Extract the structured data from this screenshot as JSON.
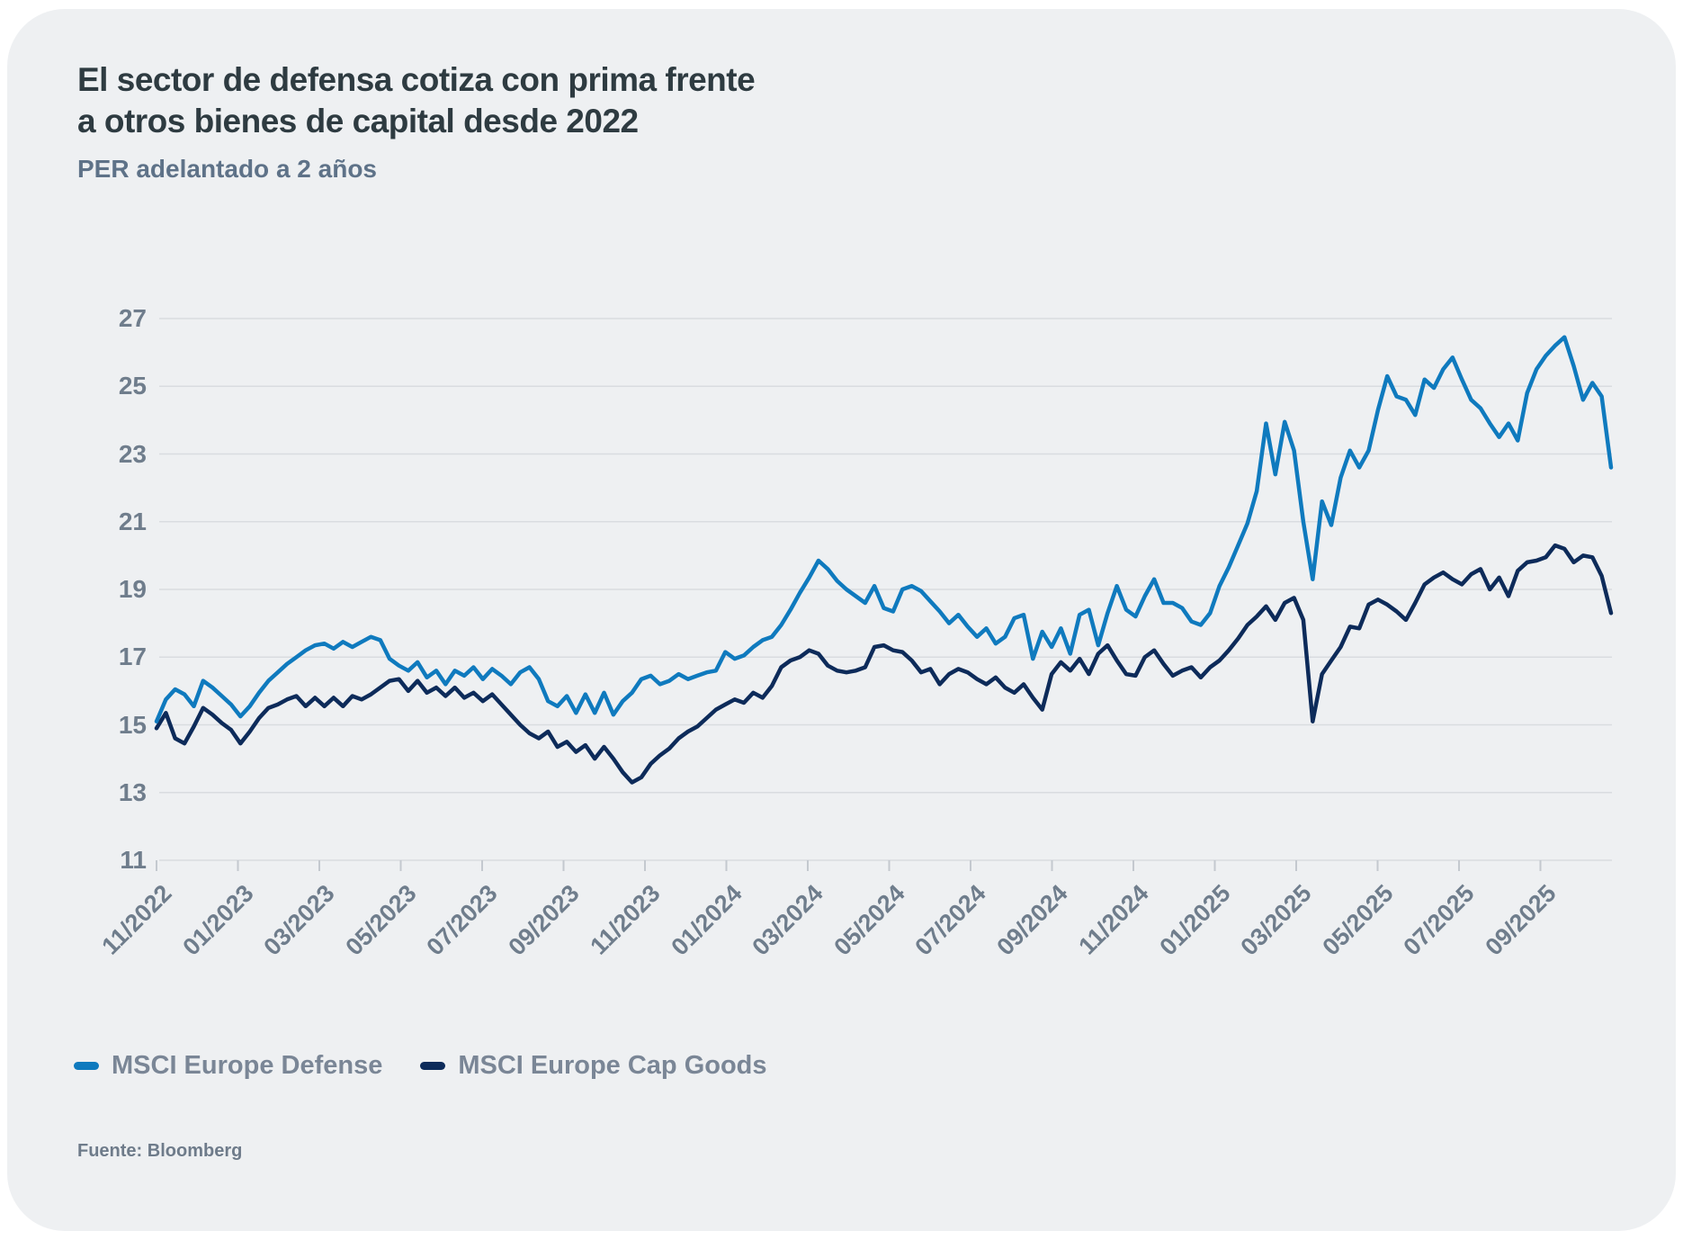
{
  "card": {
    "title_lines": [
      "El sector de defensa cotiza con prima frente",
      "a otros bienes de capital desde 2022"
    ],
    "subtitle": "PER adelantado a 2 años",
    "source": "Fuente: Bloomberg"
  },
  "legend": [
    {
      "label": "MSCI Europe Defense",
      "color": "#0f7abe"
    },
    {
      "label": "MSCI Europe Cap Goods",
      "color": "#0d2b5a"
    }
  ],
  "colors": {
    "card_background": "#eef0f2",
    "gridline": "#d9dce0",
    "axis_tick": "#c4c9cf",
    "axis_label": "#6f7d8c",
    "title": "#2e3b41",
    "subtitle": "#5e7288",
    "defense_line": "#0f7abe",
    "capgoods_line": "#0d2b5a"
  },
  "chart_data": {
    "type": "line",
    "title": "El sector de defensa cotiza con prima frente a otros bienes de capital desde 2022",
    "subtitle": "PER adelantado a 2 años",
    "xlabel": "",
    "ylabel": "PER adelantado a 2 años",
    "ylim": [
      11,
      27
    ],
    "y_ticks": [
      11,
      13,
      15,
      17,
      19,
      21,
      23,
      25,
      27
    ],
    "grid": true,
    "legend_position": "bottom",
    "x_tick_labels": [
      "11/2022",
      "01/2023",
      "03/2023",
      "05/2023",
      "07/2023",
      "09/2023",
      "11/2023",
      "01/2024",
      "03/2024",
      "05/2024",
      "07/2024",
      "09/2024",
      "11/2024",
      "01/2025",
      "03/2025",
      "05/2025",
      "07/2025",
      "09/2025"
    ],
    "x_resolution": "weekly from 11/2022 to 10/2025",
    "series": [
      {
        "name": "MSCI Europe Defense",
        "color": "#0f7abe",
        "values": [
          15.1,
          15.75,
          16.05,
          15.9,
          15.55,
          16.3,
          16.1,
          15.85,
          15.6,
          15.25,
          15.55,
          15.95,
          16.3,
          16.55,
          16.8,
          17.0,
          17.2,
          17.35,
          17.4,
          17.25,
          17.45,
          17.3,
          17.45,
          17.6,
          17.5,
          16.95,
          16.75,
          16.6,
          16.85,
          16.4,
          16.6,
          16.2,
          16.6,
          16.45,
          16.7,
          16.35,
          16.65,
          16.45,
          16.2,
          16.55,
          16.7,
          16.35,
          15.7,
          15.55,
          15.85,
          15.35,
          15.9,
          15.35,
          15.95,
          15.3,
          15.7,
          15.95,
          16.35,
          16.45,
          16.2,
          16.3,
          16.5,
          16.35,
          16.45,
          16.55,
          16.6,
          17.15,
          16.95,
          17.05,
          17.3,
          17.5,
          17.6,
          17.95,
          18.4,
          18.9,
          19.35,
          19.85,
          19.6,
          19.25,
          19.0,
          18.8,
          18.6,
          19.1,
          18.45,
          18.35,
          19.0,
          19.1,
          18.95,
          18.65,
          18.35,
          18.0,
          18.25,
          17.9,
          17.6,
          17.85,
          17.4,
          17.6,
          18.15,
          18.25,
          16.95,
          17.75,
          17.3,
          17.85,
          17.1,
          18.25,
          18.4,
          17.35,
          18.3,
          19.1,
          18.4,
          18.2,
          18.8,
          19.3,
          18.6,
          18.6,
          18.45,
          18.05,
          17.95,
          18.3,
          19.1,
          19.65,
          20.3,
          20.95,
          21.9,
          23.9,
          22.4,
          23.95,
          23.1,
          21.0,
          19.3,
          21.6,
          20.9,
          22.3,
          23.1,
          22.6,
          23.1,
          24.3,
          25.3,
          24.7,
          24.6,
          24.15,
          25.2,
          24.95,
          25.5,
          25.85,
          25.2,
          24.6,
          24.35,
          23.9,
          23.5,
          23.9,
          23.4,
          24.8,
          25.5,
          25.9,
          26.2,
          26.45,
          25.6,
          24.6,
          25.1,
          24.7,
          22.6
        ]
      },
      {
        "name": "MSCI Europe Cap Goods",
        "color": "#0d2b5a",
        "values": [
          14.9,
          15.35,
          14.6,
          14.45,
          14.95,
          15.5,
          15.3,
          15.05,
          14.85,
          14.45,
          14.8,
          15.2,
          15.5,
          15.6,
          15.75,
          15.85,
          15.55,
          15.8,
          15.55,
          15.8,
          15.55,
          15.85,
          15.75,
          15.9,
          16.1,
          16.3,
          16.35,
          16.0,
          16.3,
          15.95,
          16.1,
          15.85,
          16.1,
          15.8,
          15.95,
          15.7,
          15.9,
          15.6,
          15.3,
          15.0,
          14.75,
          14.6,
          14.8,
          14.35,
          14.5,
          14.2,
          14.4,
          14.0,
          14.35,
          14.0,
          13.6,
          13.3,
          13.45,
          13.85,
          14.1,
          14.3,
          14.6,
          14.8,
          14.95,
          15.2,
          15.45,
          15.6,
          15.75,
          15.65,
          15.95,
          15.8,
          16.15,
          16.7,
          16.9,
          17.0,
          17.2,
          17.1,
          16.75,
          16.6,
          16.55,
          16.6,
          16.7,
          17.3,
          17.35,
          17.2,
          17.15,
          16.9,
          16.55,
          16.65,
          16.2,
          16.5,
          16.65,
          16.55,
          16.35,
          16.2,
          16.4,
          16.1,
          15.95,
          16.2,
          15.8,
          15.45,
          16.5,
          16.85,
          16.6,
          16.95,
          16.5,
          17.1,
          17.35,
          16.9,
          16.5,
          16.45,
          17.0,
          17.2,
          16.8,
          16.45,
          16.6,
          16.7,
          16.4,
          16.7,
          16.9,
          17.2,
          17.55,
          17.95,
          18.2,
          18.5,
          18.1,
          18.6,
          18.75,
          18.1,
          15.1,
          16.5,
          16.9,
          17.3,
          17.9,
          17.85,
          18.55,
          18.7,
          18.55,
          18.35,
          18.1,
          18.6,
          19.15,
          19.35,
          19.5,
          19.3,
          19.15,
          19.45,
          19.6,
          19.0,
          19.35,
          18.8,
          19.55,
          19.8,
          19.85,
          19.95,
          20.3,
          20.2,
          19.8,
          20.0,
          19.95,
          19.4,
          18.3
        ]
      }
    ]
  }
}
